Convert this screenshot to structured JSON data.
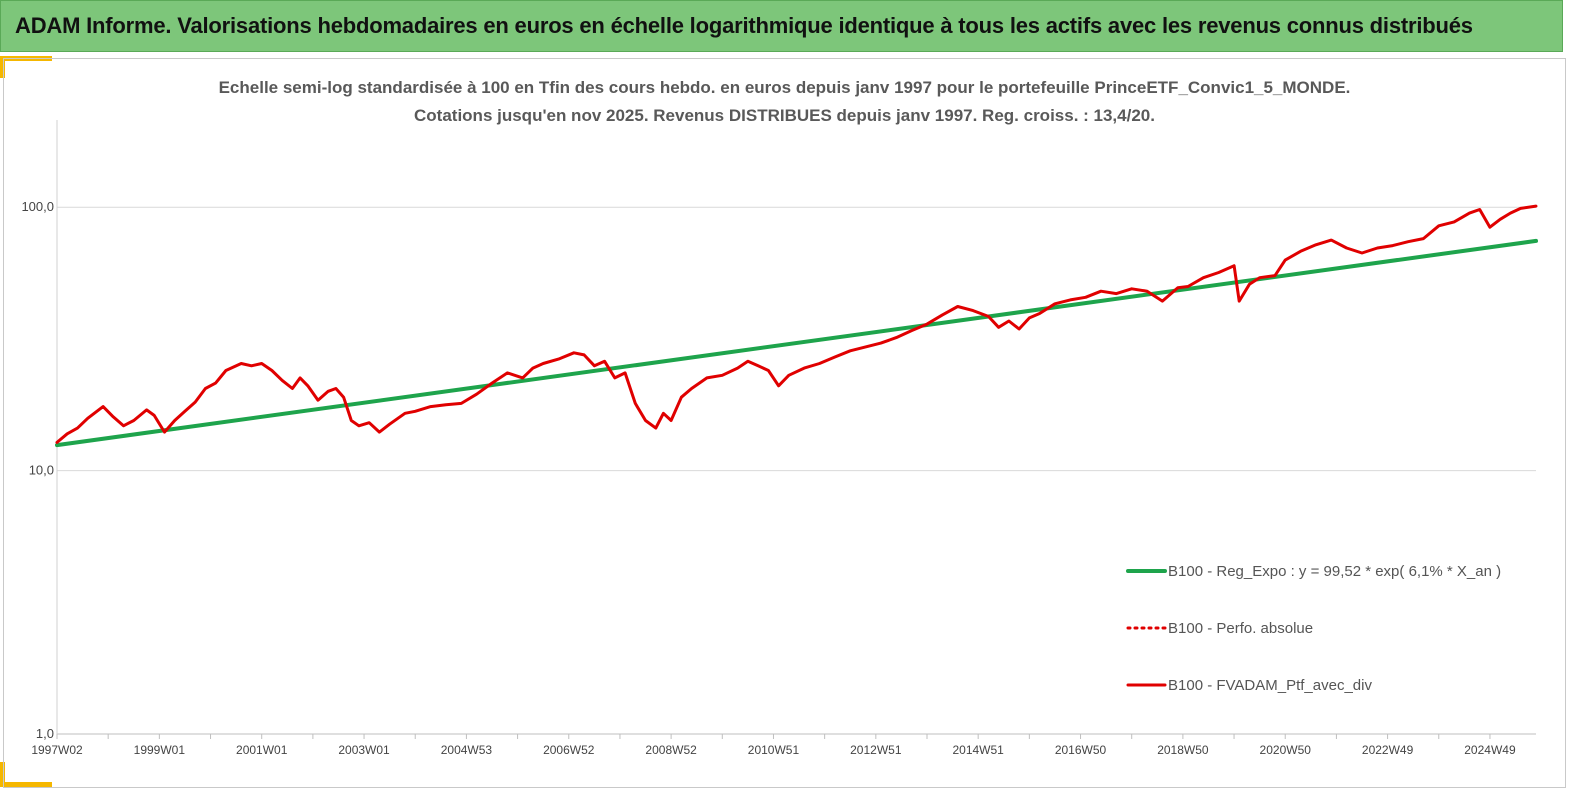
{
  "banner": {
    "title": "ADAM Informe. Valorisations hebdomadaires en euros en échelle logarithmique identique à tous les actifs avec les revenus connus distribués",
    "color": "#7dc67a"
  },
  "chart_data": {
    "type": "line",
    "title": "Echelle semi-log standardisée  à 100 en Tfin des cours hebdo.  en euros depuis janv 1997 pour le portefeuille PrinceETF_Convic1_5_MONDE.",
    "subtitle": "Cotations  jusqu'en nov 2025. Revenus DISTRIBUES depuis janv 1997. Reg. croiss. : 13,4/20.",
    "y_scale": "log",
    "ylim": [
      1,
      180
    ],
    "y_ticks": [
      {
        "value": 1,
        "label": "1,0"
      },
      {
        "value": 10,
        "label": "10,0"
      },
      {
        "value": 100,
        "label": "100,0"
      }
    ],
    "xlim": [
      1997.0,
      2025.9
    ],
    "x_ticks": [
      {
        "value": 1997.0,
        "label": "1997W02"
      },
      {
        "value": 1999.0,
        "label": "1999W01"
      },
      {
        "value": 2001.0,
        "label": "2001W01"
      },
      {
        "value": 2003.0,
        "label": "2003W01"
      },
      {
        "value": 2005.0,
        "label": "2004W53"
      },
      {
        "value": 2007.0,
        "label": "2006W52"
      },
      {
        "value": 2009.0,
        "label": "2008W52"
      },
      {
        "value": 2011.0,
        "label": "2010W51"
      },
      {
        "value": 2013.0,
        "label": "2012W51"
      },
      {
        "value": 2015.0,
        "label": "2014W51"
      },
      {
        "value": 2017.0,
        "label": "2016W50"
      },
      {
        "value": 2019.0,
        "label": "2018W50"
      },
      {
        "value": 2021.0,
        "label": "2020W50"
      },
      {
        "value": 2023.0,
        "label": "2022W49"
      },
      {
        "value": 2025.0,
        "label": "2024W49"
      }
    ],
    "grid": "horizontal",
    "legend_position": "bottom-right",
    "series": [
      {
        "name": "B100 - Reg_Expo : y = 99,52 * exp( 6,1% *  X_an )",
        "color": "#1ea44c",
        "style": "solid",
        "x": [
          1997.0,
          2025.9
        ],
        "values": [
          12.5,
          74.5
        ]
      },
      {
        "name": "B100 - Perfo. absolue",
        "color": "#e00000",
        "style": "dotted",
        "x": [],
        "values": []
      },
      {
        "name": "B100 - FVADAM_Ptf_avec_div",
        "color": "#e00000",
        "style": "solid",
        "x": [
          1997.0,
          1997.2,
          1997.4,
          1997.6,
          1997.9,
          1998.1,
          1998.3,
          1998.5,
          1998.75,
          1998.9,
          1999.1,
          1999.3,
          1999.5,
          1999.7,
          1999.9,
          2000.1,
          2000.3,
          2000.6,
          2000.8,
          2001.0,
          2001.2,
          2001.4,
          2001.6,
          2001.75,
          2001.9,
          2002.1,
          2002.3,
          2002.45,
          2002.6,
          2002.75,
          2002.9,
          2003.1,
          2003.3,
          2003.5,
          2003.8,
          2004.0,
          2004.3,
          2004.6,
          2004.9,
          2005.2,
          2005.5,
          2005.8,
          2006.1,
          2006.3,
          2006.5,
          2006.8,
          2007.1,
          2007.3,
          2007.5,
          2007.7,
          2007.9,
          2008.1,
          2008.3,
          2008.5,
          2008.7,
          2008.85,
          2009.0,
          2009.2,
          2009.4,
          2009.7,
          2010.0,
          2010.3,
          2010.5,
          2010.7,
          2010.9,
          2011.1,
          2011.3,
          2011.6,
          2011.9,
          2012.2,
          2012.5,
          2012.8,
          2013.1,
          2013.4,
          2013.7,
          2014.0,
          2014.3,
          2014.6,
          2014.9,
          2015.2,
          2015.4,
          2015.6,
          2015.8,
          2016.0,
          2016.2,
          2016.5,
          2016.8,
          2017.1,
          2017.4,
          2017.7,
          2018.0,
          2018.3,
          2018.6,
          2018.9,
          2019.1,
          2019.4,
          2019.7,
          2020.0,
          2020.1,
          2020.3,
          2020.5,
          2020.8,
          2021.0,
          2021.3,
          2021.6,
          2021.9,
          2022.2,
          2022.5,
          2022.8,
          2023.1,
          2023.4,
          2023.7,
          2024.0,
          2024.3,
          2024.6,
          2024.8,
          2025.0,
          2025.2,
          2025.4,
          2025.6,
          2025.9
        ],
        "values": [
          12.8,
          13.8,
          14.5,
          15.8,
          17.5,
          16.0,
          14.8,
          15.5,
          17.0,
          16.2,
          14.0,
          15.5,
          16.8,
          18.2,
          20.5,
          21.5,
          24.0,
          25.5,
          25.0,
          25.5,
          24.0,
          22.0,
          20.5,
          22.5,
          21.0,
          18.5,
          20.0,
          20.5,
          19.0,
          15.5,
          14.8,
          15.2,
          14.0,
          15.0,
          16.5,
          16.8,
          17.5,
          17.8,
          18.0,
          19.5,
          21.5,
          23.5,
          22.5,
          24.5,
          25.5,
          26.5,
          28.0,
          27.5,
          25.0,
          26.0,
          22.5,
          23.5,
          18.0,
          15.5,
          14.5,
          16.5,
          15.5,
          19.0,
          20.5,
          22.5,
          23.0,
          24.5,
          26.0,
          25.0,
          24.0,
          21.0,
          23.0,
          24.5,
          25.5,
          27.0,
          28.5,
          29.5,
          30.5,
          32.0,
          34.0,
          36.0,
          39.0,
          42.0,
          40.5,
          38.5,
          35.0,
          37.0,
          34.5,
          38.0,
          39.5,
          43.0,
          44.5,
          45.5,
          48.0,
          47.0,
          49.0,
          48.0,
          44.0,
          49.5,
          50.0,
          54.0,
          56.5,
          60.0,
          44.0,
          51.0,
          54.0,
          55.0,
          63.0,
          68.0,
          72.0,
          75.0,
          70.0,
          67.0,
          70.0,
          71.5,
          74.0,
          76.0,
          85.0,
          88.0,
          95.0,
          98.0,
          84.0,
          90.0,
          95.0,
          99.0,
          101.0
        ]
      }
    ]
  }
}
